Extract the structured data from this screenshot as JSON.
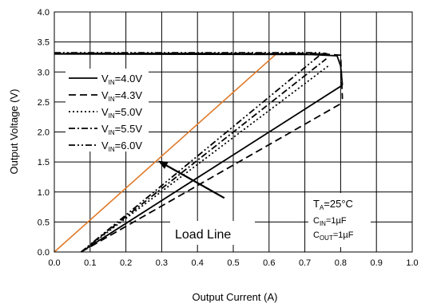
{
  "chart_data": {
    "type": "line",
    "xlabel": "Output Current (A)",
    "ylabel": "Output Voltage (V)",
    "xlim": [
      0,
      1.0
    ],
    "ylim": [
      0,
      4.0
    ],
    "x_ticks": [
      "0.0",
      "0.1",
      "0.2",
      "0.3",
      "0.4",
      "0.5",
      "0.6",
      "0.7",
      "0.8",
      "0.9",
      "1.0"
    ],
    "y_ticks": [
      "0.0",
      "0.5",
      "1.0",
      "1.5",
      "2.0",
      "2.5",
      "3.0",
      "3.5",
      "4.0"
    ],
    "grid": true,
    "legend_placement": "left",
    "series": [
      {
        "name": "V_IN=4.0V",
        "label_main": "V",
        "label_sub": "IN",
        "label_rest": "=4.0V",
        "dash": "solid",
        "color": "#000000",
        "top": [
          [
            0.0,
            3.3
          ],
          [
            0.72,
            3.29
          ],
          [
            0.79,
            3.27
          ],
          [
            0.8,
            3.1
          ],
          [
            0.805,
            2.78
          ]
        ],
        "line": [
          [
            0.075,
            0.0
          ],
          [
            0.805,
            2.78
          ]
        ]
      },
      {
        "name": "V_IN=4.3V",
        "label_main": "V",
        "label_sub": "IN",
        "label_rest": "=4.3V",
        "dash": "long-dash",
        "color": "#000000",
        "top": [
          [
            0.0,
            3.31
          ],
          [
            0.75,
            3.3
          ],
          [
            0.8,
            3.28
          ],
          [
            0.805,
            2.55
          ]
        ],
        "line": [
          [
            0.075,
            0.0
          ],
          [
            0.8,
            2.47
          ]
        ]
      },
      {
        "name": "V_IN=5.0V",
        "label_main": "V",
        "label_sub": "IN",
        "label_rest": "=5.0V",
        "dash": "dot",
        "color": "#000000",
        "top": [
          [
            0.0,
            3.31
          ],
          [
            0.77,
            3.3
          ]
        ],
        "line": [
          [
            0.075,
            0.0
          ],
          [
            0.77,
            3.12
          ]
        ]
      },
      {
        "name": "V_IN=5.5V",
        "label_main": "V",
        "label_sub": "IN",
        "label_rest": "=5.5V",
        "dash": "dash-dot",
        "color": "#000000",
        "top": [
          [
            0.0,
            3.31
          ],
          [
            0.76,
            3.31
          ]
        ],
        "line": [
          [
            0.075,
            0.0
          ],
          [
            0.76,
            3.22
          ]
        ]
      },
      {
        "name": "V_IN=6.0V",
        "label_main": "V",
        "label_sub": "IN",
        "label_rest": "=6.0V",
        "dash": "dash-dot-dot",
        "color": "#000000",
        "top": [
          [
            0.0,
            3.32
          ],
          [
            0.75,
            3.32
          ]
        ],
        "line": [
          [
            0.075,
            0.0
          ],
          [
            0.75,
            3.32
          ]
        ]
      }
    ],
    "load_line": {
      "color": "#e07a2a",
      "points": [
        [
          0.0,
          0.0
        ],
        [
          0.62,
          3.3
        ]
      ]
    },
    "annotation": {
      "text": "Load Line",
      "arrow_from": [
        0.475,
        0.9
      ],
      "arrow_to": [
        0.29,
        1.52
      ]
    },
    "conditions": {
      "ta_main": "T",
      "ta_sub": "A",
      "ta_rest": "=25°C",
      "cin_main": "C",
      "cin_sub": "IN",
      "cin_rest": "=1µF",
      "cout_main": "C",
      "cout_sub": "OUT",
      "cout_rest": "=1µF"
    }
  }
}
